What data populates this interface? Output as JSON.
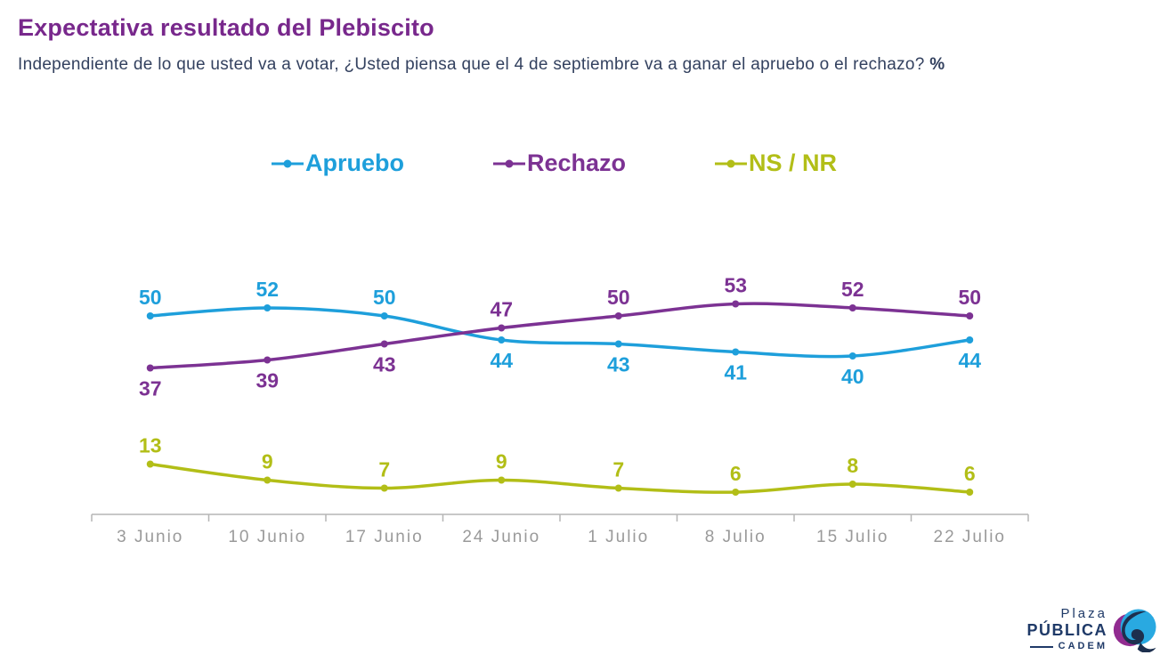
{
  "header": {
    "title": "Expectativa resultado del Plebiscito",
    "subtitle": "Independiente de lo que usted va a votar, ¿Usted piensa que el 4 de septiembre va a ganar el apruebo o el rechazo?",
    "subtitle_suffix": "%"
  },
  "chart_data": {
    "type": "line",
    "title": "Expectativa resultado del Plebiscito",
    "xlabel": "",
    "ylabel": "",
    "ylim": [
      0,
      60
    ],
    "grid": false,
    "legend_position": "top-center",
    "data_labels": true,
    "categories": [
      "3 Junio",
      "10 Junio",
      "17 Junio",
      "24 Junio",
      "1 Julio",
      "8 Julio",
      "15 Julio",
      "22 Julio"
    ],
    "series": [
      {
        "name": "Apruebo",
        "color": "#1E9FDB",
        "values": [
          50,
          52,
          50,
          44,
          43,
          41,
          40,
          44
        ],
        "label_side": [
          "above",
          "above",
          "above",
          "below",
          "below",
          "below",
          "below",
          "below"
        ]
      },
      {
        "name": "Rechazo",
        "color": "#7C3293",
        "values": [
          37,
          39,
          43,
          47,
          50,
          53,
          52,
          50
        ],
        "label_side": [
          "below",
          "below",
          "below",
          "above",
          "above",
          "above",
          "above",
          "above"
        ]
      },
      {
        "name": "NS / NR",
        "color": "#B2BE17",
        "values": [
          13,
          9,
          7,
          9,
          7,
          6,
          8,
          6
        ],
        "label_side": [
          "above",
          "above",
          "above",
          "above",
          "above",
          "above",
          "above",
          "above"
        ]
      }
    ]
  },
  "logo": {
    "line1": "Plaza",
    "line2": "PÚBLICA",
    "line3": "CADEM"
  },
  "colors": {
    "title": "#78288C",
    "subtitle": "#33415F",
    "axis_line": "#B5B5B5",
    "axis_label": "#9A9A9A",
    "logo_navy": "#1F3A68",
    "logo_blue": "#29A9E1",
    "logo_purple": "#912B90",
    "logo_dark": "#1D2F4E"
  }
}
